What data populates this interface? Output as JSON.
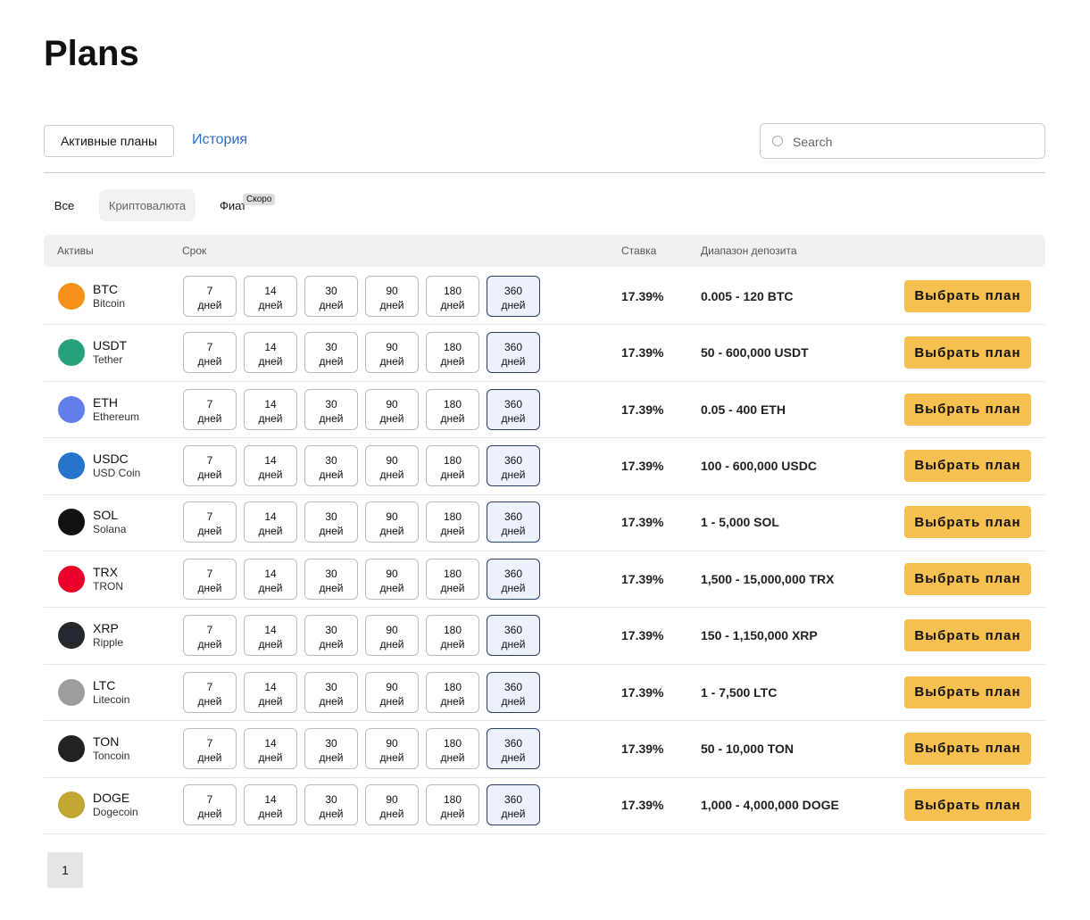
{
  "header": {
    "title": "Plans"
  },
  "tabs": [
    "Активные планы",
    "История"
  ],
  "search": {
    "placeholder": "Search"
  },
  "filters": [
    "Все",
    "Криптовалюта",
    "Фиат"
  ],
  "badge": "Скоро",
  "table": {
    "columns": [
      "Активы",
      "Срок",
      "Ставка",
      "Диапазон депозита"
    ],
    "terms": [
      7,
      14,
      30,
      90,
      180,
      360
    ],
    "term_unit": "дней",
    "action": "Выбрать план",
    "rows": [
      {
        "symbol": "BTC",
        "name": "Bitcoin",
        "color": "#f7931a",
        "rate": "17.39%",
        "range": "0.005 - 120 BTC"
      },
      {
        "symbol": "USDT",
        "name": "Tether",
        "color": "#26a17b",
        "rate": "17.39%",
        "range": "50 - 600,000 USDT"
      },
      {
        "symbol": "ETH",
        "name": "Ethereum",
        "color": "#627eea",
        "rate": "17.39%",
        "range": "0.05 - 400 ETH"
      },
      {
        "symbol": "USDC",
        "name": "USD Coin",
        "color": "#2775ca",
        "rate": "17.39%",
        "range": "100 - 600,000 USDC"
      },
      {
        "symbol": "SOL",
        "name": "Solana",
        "color": "#111111",
        "rate": "17.39%",
        "range": "1 - 5,000 SOL"
      },
      {
        "symbol": "TRX",
        "name": "TRON",
        "color": "#eb0029",
        "rate": "17.39%",
        "range": "1,500 - 15,000,000 TRX"
      },
      {
        "symbol": "XRP",
        "name": "Ripple",
        "color": "#23292f",
        "rate": "17.39%",
        "range": "150 - 1,150,000 XRP"
      },
      {
        "symbol": "LTC",
        "name": "Litecoin",
        "color": "#9e9e9e",
        "rate": "17.39%",
        "range": "1 - 7,500 LTC"
      },
      {
        "symbol": "TON",
        "name": "Toncoin",
        "color": "#222222",
        "rate": "17.39%",
        "range": "50 - 10,000 TON"
      },
      {
        "symbol": "DOGE",
        "name": "Dogecoin",
        "color": "#c2a633",
        "rate": "17.39%",
        "range": "1,000 - 4,000,000 DOGE"
      }
    ]
  },
  "pagination": [
    "1"
  ]
}
